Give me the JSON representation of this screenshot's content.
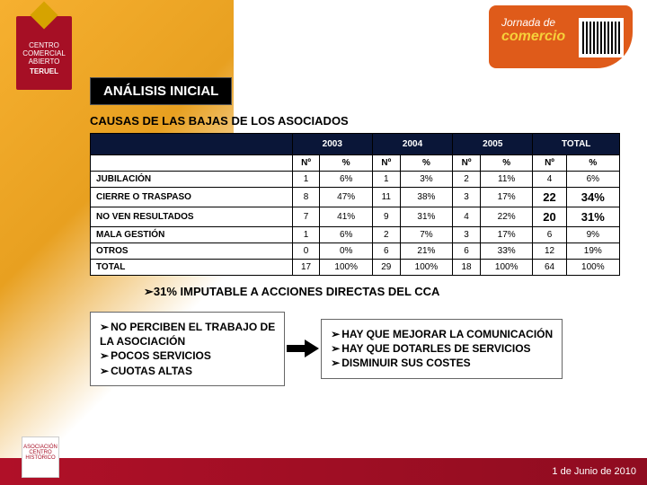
{
  "logo": {
    "line1": "CENTRO",
    "line2": "COMERCIAL",
    "line3": "ABIERTO",
    "line4": "TERUEL"
  },
  "topBadge": {
    "line1": "Jornada de",
    "line2": "comercio"
  },
  "title": "ANÁLISIS INICIAL",
  "subtitle": "CAUSAS DE LAS BAJAS DE LOS ASOCIADOS",
  "table": {
    "yearHeaders": [
      "2003",
      "2004",
      "2005",
      "TOTAL"
    ],
    "subHeaders": [
      "Nº",
      "%",
      "Nº",
      "%",
      "Nº",
      "%",
      "Nº",
      "%"
    ],
    "rows": [
      {
        "label": "JUBILACIÓN",
        "c": [
          "1",
          "6%",
          "1",
          "3%",
          "2",
          "11%",
          "4",
          "6%"
        ],
        "bold": [
          false,
          false,
          false,
          false,
          false,
          false,
          false,
          false
        ]
      },
      {
        "label": "CIERRE O TRASPASO",
        "c": [
          "8",
          "47%",
          "11",
          "38%",
          "3",
          "17%",
          "22",
          "34%"
        ],
        "bold": [
          false,
          false,
          false,
          false,
          false,
          false,
          true,
          true
        ]
      },
      {
        "label": "NO VEN RESULTADOS",
        "c": [
          "7",
          "41%",
          "9",
          "31%",
          "4",
          "22%",
          "20",
          "31%"
        ],
        "bold": [
          false,
          false,
          false,
          false,
          false,
          false,
          true,
          true
        ]
      },
      {
        "label": "MALA GESTIÓN",
        "c": [
          "1",
          "6%",
          "2",
          "7%",
          "3",
          "17%",
          "6",
          "9%"
        ],
        "bold": [
          false,
          false,
          false,
          false,
          false,
          false,
          false,
          false
        ]
      },
      {
        "label": "OTROS",
        "c": [
          "0",
          "0%",
          "6",
          "21%",
          "6",
          "33%",
          "12",
          "19%"
        ],
        "bold": [
          false,
          false,
          false,
          false,
          false,
          false,
          false,
          false
        ]
      },
      {
        "label": "TOTAL",
        "c": [
          "17",
          "100%",
          "29",
          "100%",
          "18",
          "100%",
          "64",
          "100%"
        ],
        "bold": [
          false,
          false,
          false,
          false,
          false,
          false,
          false,
          false
        ]
      }
    ]
  },
  "note31": "31% IMPUTABLE A ACCIONES DIRECTAS DEL CCA",
  "left": [
    "NO PERCIBEN EL TRABAJO DE",
    "LA ASOCIACIÓN",
    "POCOS SERVICIOS",
    "CUOTAS ALTAS"
  ],
  "right": [
    "HAY QUE MEJORAR LA COMUNICACIÓN",
    "HAY QUE DOTARLES DE SERVICIOS",
    "DISMINUIR SUS COSTES"
  ],
  "footer": {
    "date": "1 de Junio de 2010",
    "logo": "ASOCIACIÓN CENTRO HISTÓRICO"
  },
  "colors": {
    "headerBg": "#0a1638",
    "logoBg": "#a60f25",
    "badgeBg": "#df5b1a",
    "footerBg": "#a60f25",
    "accent": "#f6b030"
  }
}
